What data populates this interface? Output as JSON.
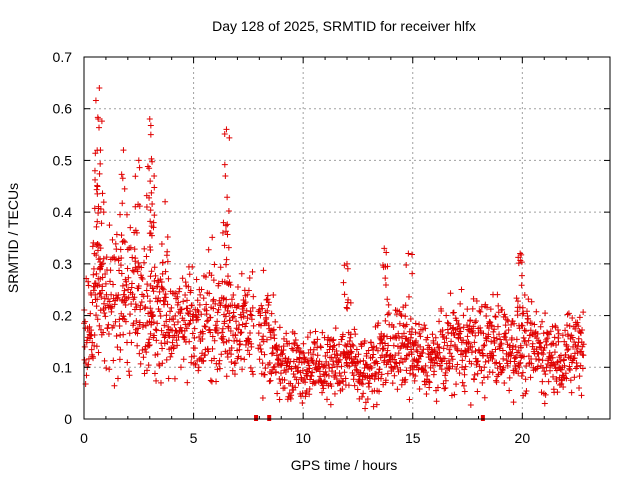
{
  "chart_data": {
    "type": "scatter",
    "title": "Day 128 of 2025, SRMTID for receiver hlfx",
    "xlabel": "GPS time / hours",
    "ylabel": "SRMTID / TECUs",
    "xlim": [
      0,
      24
    ],
    "ylim": [
      0,
      0.7
    ],
    "xticks": [
      0,
      5,
      10,
      15,
      20
    ],
    "yticks": [
      0,
      0.1,
      0.2,
      0.3,
      0.4,
      0.5,
      0.6,
      0.7
    ],
    "xtick_labels": [
      "0",
      "5",
      "10",
      "15",
      "20"
    ],
    "ytick_labels": [
      "0",
      "0.1",
      "0.2",
      "0.3",
      "0.4",
      "0.5",
      "0.6",
      "0.7"
    ],
    "grid": true,
    "marker": "+",
    "color": "#e00000",
    "gap_markers_x": [
      7.85,
      8.45,
      18.2
    ],
    "profile": [
      {
        "x": 0.0,
        "y": 0.15
      },
      {
        "x": 0.5,
        "y": 0.21
      },
      {
        "x": 1.0,
        "y": 0.23
      },
      {
        "x": 2.0,
        "y": 0.22
      },
      {
        "x": 3.0,
        "y": 0.21
      },
      {
        "x": 4.0,
        "y": 0.19
      },
      {
        "x": 5.0,
        "y": 0.18
      },
      {
        "x": 6.0,
        "y": 0.19
      },
      {
        "x": 7.0,
        "y": 0.17
      },
      {
        "x": 8.0,
        "y": 0.18
      },
      {
        "x": 9.0,
        "y": 0.11
      },
      {
        "x": 10.0,
        "y": 0.1
      },
      {
        "x": 11.0,
        "y": 0.1
      },
      {
        "x": 12.0,
        "y": 0.12
      },
      {
        "x": 13.0,
        "y": 0.09
      },
      {
        "x": 14.0,
        "y": 0.14
      },
      {
        "x": 15.0,
        "y": 0.12
      },
      {
        "x": 16.0,
        "y": 0.11
      },
      {
        "x": 17.0,
        "y": 0.15
      },
      {
        "x": 18.0,
        "y": 0.14
      },
      {
        "x": 19.0,
        "y": 0.15
      },
      {
        "x": 20.0,
        "y": 0.14
      },
      {
        "x": 21.0,
        "y": 0.13
      },
      {
        "x": 22.0,
        "y": 0.12
      },
      {
        "x": 22.8,
        "y": 0.15
      }
    ],
    "peaks": [
      {
        "x": 0.7,
        "y": 0.64
      },
      {
        "x": 0.65,
        "y": 0.58
      },
      {
        "x": 0.75,
        "y": 0.52
      },
      {
        "x": 0.5,
        "y": 0.48
      },
      {
        "x": 1.8,
        "y": 0.52
      },
      {
        "x": 2.5,
        "y": 0.5
      },
      {
        "x": 3.0,
        "y": 0.58
      },
      {
        "x": 3.05,
        "y": 0.55
      },
      {
        "x": 3.2,
        "y": 0.47
      },
      {
        "x": 3.7,
        "y": 0.42
      },
      {
        "x": 6.5,
        "y": 0.56
      },
      {
        "x": 6.45,
        "y": 0.47
      },
      {
        "x": 13.7,
        "y": 0.33
      },
      {
        "x": 14.8,
        "y": 0.32
      },
      {
        "x": 19.9,
        "y": 0.32
      },
      {
        "x": 12.0,
        "y": 0.3
      }
    ]
  }
}
